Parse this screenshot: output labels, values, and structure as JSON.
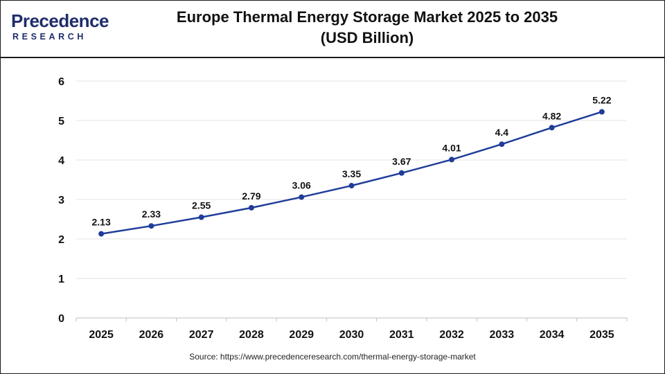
{
  "header": {
    "logo_top": "Precedence",
    "logo_bottom": "RESEARCH",
    "title_line1": "Europe Thermal Energy Storage Market 2025 to 2035",
    "title_line2": "(USD Billion)"
  },
  "source": "Source: https://www.precedenceresearch.com/thermal-energy-storage-market",
  "colors": {
    "line": "#1f3d99",
    "brand": "#1f2d6b",
    "grid": "#e3e3e3"
  },
  "chart_data": {
    "type": "line",
    "title": "Europe Thermal Energy Storage Market 2025 to 2035",
    "subtitle": "(USD Billion)",
    "categories": [
      "2025",
      "2026",
      "2027",
      "2028",
      "2029",
      "2030",
      "2031",
      "2032",
      "2033",
      "2034",
      "2035"
    ],
    "values": [
      2.13,
      2.33,
      2.55,
      2.79,
      3.06,
      3.35,
      3.67,
      4.01,
      4.4,
      4.82,
      5.22
    ],
    "value_labels": [
      "2.13",
      "2.33",
      "2.55",
      "2.79",
      "3.06",
      "3.35",
      "3.67",
      "4.01",
      "4.4",
      "4.82",
      "5.22"
    ],
    "ylim": [
      0,
      6
    ],
    "yticks": [
      0,
      1,
      2,
      3,
      4,
      5,
      6
    ],
    "xlabel": "",
    "ylabel": "",
    "grid": true,
    "legend": "none"
  }
}
